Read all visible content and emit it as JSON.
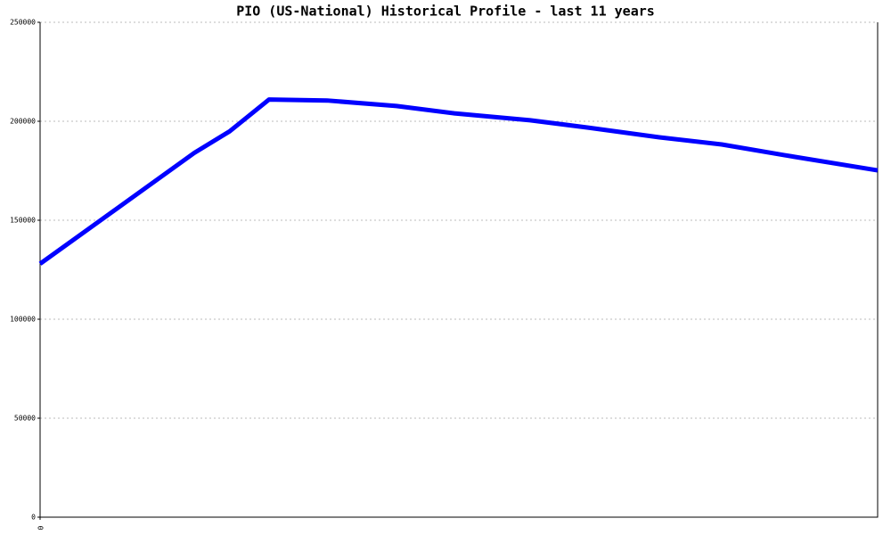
{
  "chart_data": {
    "type": "line",
    "title": "PIO (US-National) Historical Profile - last 11 years",
    "x": [
      0,
      173,
      213,
      257,
      322,
      400,
      465,
      550,
      615,
      695,
      765,
      835,
      940
    ],
    "series": [
      {
        "name": "PIO",
        "color": "#0000ff",
        "values": [
          128000,
          184000,
          195000,
          211000,
          210500,
          207700,
          204000,
          200500,
          196800,
          191900,
          188300,
          182900,
          175200
        ]
      }
    ],
    "xlim": [
      0,
      940
    ],
    "xticks": [
      0
    ],
    "ylim": [
      0,
      250000
    ],
    "yticks": [
      0,
      50000,
      100000,
      150000,
      200000,
      250000
    ],
    "grid": true
  }
}
